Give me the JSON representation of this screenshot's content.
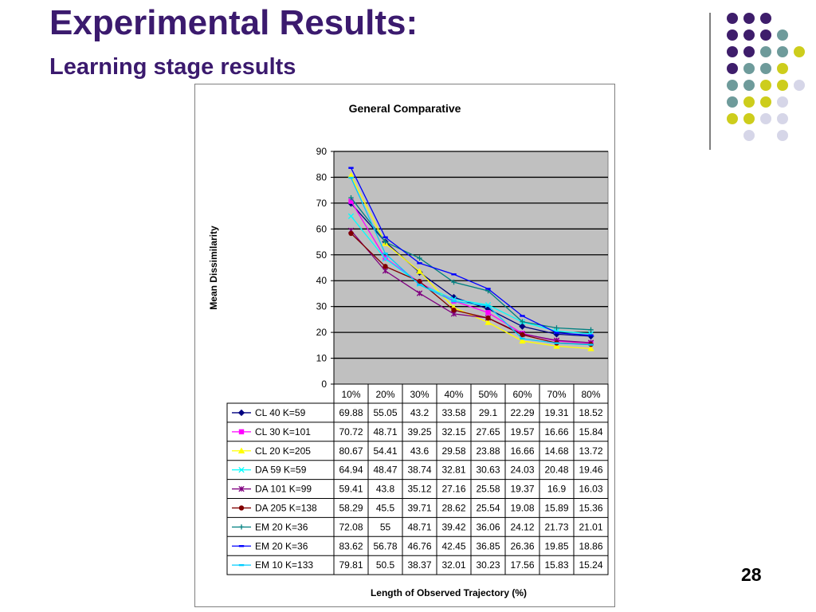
{
  "slide": {
    "title": "Experimental Results:",
    "subtitle": "Learning stage results",
    "page_number": "28"
  },
  "decor": {
    "dot_colors": {
      "purple": "#3e1d6b",
      "teal": "#6e9b9b",
      "yellow": "#cdcd1c",
      "lavender": "#d6d6e8"
    },
    "dot_grid": [
      [
        "purple",
        "purple",
        "purple",
        null,
        null
      ],
      [
        "purple",
        "purple",
        "purple",
        "teal",
        null
      ],
      [
        "purple",
        "purple",
        "teal",
        "teal",
        "yellow"
      ],
      [
        "purple",
        "teal",
        "teal",
        "yellow",
        null
      ],
      [
        "teal",
        "teal",
        "yellow",
        "yellow",
        "lavender"
      ],
      [
        "teal",
        "yellow",
        "yellow",
        "lavender",
        null
      ],
      [
        "yellow",
        "yellow",
        "lavender",
        "lavender",
        null
      ],
      [
        null,
        "lavender",
        null,
        "lavender",
        null
      ]
    ]
  },
  "chart_data": {
    "type": "line",
    "title": "General Comparative",
    "ylabel": "Mean Dissimilarity",
    "xlabel": "Length of Observed Trajectory (%)",
    "ylim": [
      0,
      90
    ],
    "yticks": [
      0,
      10,
      20,
      30,
      40,
      50,
      60,
      70,
      80,
      90
    ],
    "grid": true,
    "legend_position": "data-table",
    "categories": [
      "10%",
      "20%",
      "30%",
      "40%",
      "50%",
      "60%",
      "70%",
      "80%"
    ],
    "series": [
      {
        "name": "CL 40 K=59",
        "color": "#000080",
        "marker": "diamond",
        "values": [
          69.88,
          55.05,
          43.2,
          33.58,
          29.1,
          22.29,
          19.31,
          18.52
        ]
      },
      {
        "name": "CL 30 K=101",
        "color": "#ff00ff",
        "marker": "square",
        "values": [
          70.72,
          48.71,
          39.25,
          32.15,
          27.65,
          19.57,
          16.66,
          15.84
        ]
      },
      {
        "name": "CL 20 K=205",
        "color": "#ffff00",
        "marker": "triangle",
        "values": [
          80.67,
          54.41,
          43.6,
          29.58,
          23.88,
          16.66,
          14.68,
          13.72
        ]
      },
      {
        "name": "DA 59 K=59",
        "color": "#00ffff",
        "marker": "x",
        "values": [
          64.94,
          48.47,
          38.74,
          32.81,
          30.63,
          24.03,
          20.48,
          19.46
        ]
      },
      {
        "name": "DA 101 K=99",
        "color": "#800080",
        "marker": "star",
        "values": [
          59.41,
          43.8,
          35.12,
          27.16,
          25.58,
          19.37,
          16.9,
          16.03
        ]
      },
      {
        "name": "DA 205 K=138",
        "color": "#800000",
        "marker": "circle",
        "values": [
          58.29,
          45.5,
          39.71,
          28.62,
          25.54,
          19.08,
          15.89,
          15.36
        ]
      },
      {
        "name": "EM 20 K=36",
        "color": "#008080",
        "marker": "plus",
        "values": [
          72.08,
          55,
          48.71,
          39.42,
          36.06,
          24.12,
          21.73,
          21.01
        ]
      },
      {
        "name": "EM 20 K=36",
        "color": "#0000ff",
        "marker": "dash",
        "values": [
          83.62,
          56.78,
          46.76,
          42.45,
          36.85,
          26.36,
          19.85,
          18.86
        ]
      },
      {
        "name": "EM 10 K=133",
        "color": "#00ccff",
        "marker": "dash",
        "values": [
          79.81,
          50.5,
          38.37,
          32.01,
          30.23,
          17.56,
          15.83,
          15.24
        ]
      }
    ]
  }
}
